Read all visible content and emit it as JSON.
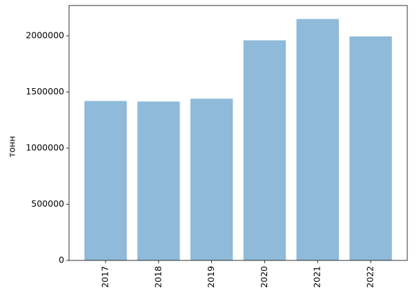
{
  "chart_data": {
    "type": "bar",
    "y_label": "тонн",
    "categories": [
      "2017",
      "2018",
      "2019",
      "2020",
      "2021",
      "2022"
    ],
    "values": [
      1420000,
      1415000,
      1440000,
      1960000,
      2150000,
      1995000
    ],
    "color": "#8fbad9",
    "ylim": [
      0,
      2270000
    ],
    "yticks": [
      0,
      500000,
      1000000,
      1500000,
      2000000
    ],
    "grid": false
  }
}
